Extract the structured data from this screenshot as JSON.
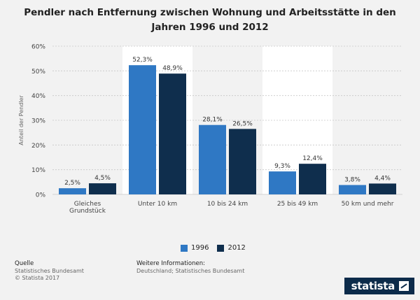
{
  "title_lines": [
    "Pendler nach Entfernung zwischen Wohnung und Arbeitsstätte in den",
    "Jahren 1996 und 2012"
  ],
  "chart_data": {
    "type": "bar",
    "title": "Pendler nach Entfernung zwischen Wohnung und Arbeitsstätte in den Jahren 1996 und 2012",
    "xlabel": "",
    "ylabel": "Anteil der Pendler",
    "ylim": [
      0,
      60
    ],
    "yticks": [
      0,
      10,
      20,
      30,
      40,
      50,
      60
    ],
    "ytick_labels": [
      "0%",
      "10%",
      "20%",
      "30%",
      "40%",
      "50%",
      "60%"
    ],
    "categories": [
      [
        "Gleiches",
        "Grundstück"
      ],
      [
        "Unter 10 km"
      ],
      [
        "10 bis 24 km"
      ],
      [
        "25 bis 49 km"
      ],
      [
        "50 km und mehr"
      ]
    ],
    "series": [
      {
        "name": "1996",
        "color": "#2f78c4",
        "values": [
          2.5,
          52.3,
          28.1,
          9.3,
          3.8
        ],
        "labels": [
          "2,5%",
          "52,3%",
          "28,1%",
          "9,3%",
          "3,8%"
        ]
      },
      {
        "name": "2012",
        "color": "#0f2e4d",
        "values": [
          4.5,
          48.9,
          26.5,
          12.4,
          4.4
        ],
        "labels": [
          "4,5%",
          "48,9%",
          "26,5%",
          "12,4%",
          "4,4%"
        ]
      }
    ],
    "legend": "bottom-center"
  },
  "footer": {
    "source_head": "Quelle",
    "source_lines": [
      "Statistisches Bundesamt",
      "© Statista 2017"
    ],
    "info_head": "Weitere Informationen:",
    "info_lines": [
      "Deutschland; Statistisches Bundesamt"
    ]
  },
  "brand": {
    "name": "statista"
  }
}
